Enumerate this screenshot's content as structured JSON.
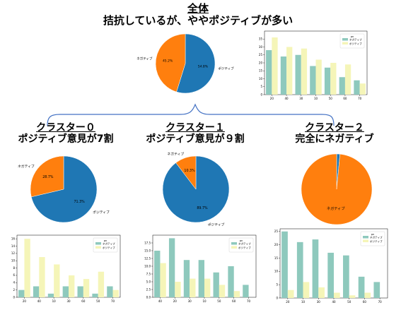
{
  "titles": {
    "all": {
      "main": "全体",
      "sub": "拮抗しているが、ややポジティブが多い"
    },
    "c0": {
      "main": "クラスター０",
      "sub": "ポジティブ意見が7割"
    },
    "c1": {
      "main": "クラスター１",
      "sub": "ポジティブ意見が９割"
    },
    "c2": {
      "main": "クラスター２",
      "sub": "完全にネガティブ"
    }
  },
  "colors": {
    "pie_positive": "#1f77b4",
    "pie_negative": "#ff7f0e",
    "bar_negative": "#8ec9bd",
    "bar_positive": "#f5f5b8"
  },
  "chart_data": [
    {
      "id": "pie-all",
      "type": "pie",
      "labels": [
        "ポジティブ",
        "ネガティブ"
      ],
      "values": [
        54.8,
        45.2
      ],
      "value_labels": [
        "54.8%",
        "45.2%"
      ]
    },
    {
      "id": "bar-all",
      "type": "bar",
      "categories": [
        "20",
        "40",
        "30",
        "10",
        "50",
        "60",
        "70"
      ],
      "series": [
        {
          "name": "ネガティブ",
          "values": [
            28,
            24,
            25,
            18,
            17,
            11,
            9
          ]
        },
        {
          "name": "ポジティブ",
          "values": [
            36,
            30,
            29,
            22,
            20,
            19,
            7
          ]
        }
      ],
      "legend_title": "pn",
      "legend": "top-right",
      "ylim": [
        0,
        40
      ],
      "yticks": [
        0,
        5,
        10,
        15,
        20,
        25,
        30,
        35
      ]
    },
    {
      "id": "pie-c0",
      "type": "pie",
      "labels": [
        "ポジティブ",
        "ネガティブ"
      ],
      "values": [
        71.3,
        28.7
      ],
      "value_labels": [
        "71.3%",
        "28.7%"
      ]
    },
    {
      "id": "pie-c1",
      "type": "pie",
      "labels": [
        "ポジティブ",
        "ネガティブ"
      ],
      "values": [
        89.7,
        10.3
      ],
      "value_labels": [
        "89.7%",
        "10.3%"
      ]
    },
    {
      "id": "pie-c2",
      "type": "pie",
      "labels": [
        "ポジティブ",
        "ネガティブ"
      ],
      "values": [
        1.5,
        98.5
      ],
      "value_labels": [
        "",
        ""
      ],
      "label_inside": true
    },
    {
      "id": "bar-c0",
      "type": "bar",
      "categories": [
        "20",
        "40",
        "10",
        "30",
        "60",
        "50",
        "70"
      ],
      "series": [
        {
          "name": "ネガティブ",
          "values": [
            2,
            3,
            1,
            3,
            3,
            1,
            3
          ]
        },
        {
          "name": "ポジティブ",
          "values": [
            16,
            11,
            9,
            6,
            5,
            7,
            2
          ]
        }
      ],
      "legend_title": "pn",
      "legend": "top-right",
      "ylim": [
        0,
        17
      ],
      "yticks": [
        0,
        2,
        4,
        6,
        8,
        10,
        12,
        14,
        16
      ]
    },
    {
      "id": "bar-c1",
      "type": "bar",
      "categories": [
        "40",
        "20",
        "30",
        "10",
        "50",
        "60",
        "70"
      ],
      "series": [
        {
          "name": "ネガティブ",
          "values": [
            15,
            19,
            12,
            12,
            8,
            10,
            4
          ]
        },
        {
          "name": "ポジティブ",
          "values": [
            11,
            5,
            6,
            6,
            4,
            2,
            0
          ]
        }
      ],
      "legend_title": "pn",
      "legend": "top-right",
      "ylim": [
        0,
        20
      ],
      "yticks": [
        0.0,
        2.5,
        5.0,
        7.5,
        10.0,
        12.5,
        15.0,
        17.5
      ],
      "ytick_labels": [
        "0.0",
        "2.5",
        "5.0",
        "7.5",
        "10.0",
        "12.5",
        "15.0",
        "17.5"
      ]
    },
    {
      "id": "bar-c2",
      "type": "bar",
      "categories": [
        "20",
        "10",
        "30",
        "40",
        "50",
        "60",
        "70"
      ],
      "series": [
        {
          "name": "ネガティブ",
          "values": [
            25,
            21,
            22,
            17,
            16,
            8,
            6
          ]
        },
        {
          "name": "ポジティブ",
          "values": [
            3,
            6,
            4,
            2,
            1,
            2,
            0
          ]
        }
      ],
      "legend_title": "pn",
      "legend": "top-right",
      "ylim": [
        0,
        26
      ],
      "yticks": [
        0,
        5,
        10,
        15,
        20,
        25
      ]
    }
  ]
}
